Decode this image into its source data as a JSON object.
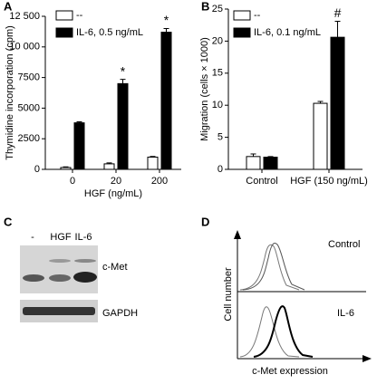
{
  "chart_data": [
    {
      "type": "bar",
      "panel": "A",
      "y_label": "Thymidine incorporation (cpm)",
      "x_label": "HGF (ng/mL)",
      "categories": [
        "0",
        "20",
        "200"
      ],
      "series": [
        {
          "name": "--",
          "color": "#ffffff",
          "values": [
            150,
            450,
            1000
          ],
          "errors": [
            50,
            80,
            50
          ]
        },
        {
          "name": "IL-6, 0.5 ng/mL",
          "color": "#000000",
          "values": [
            3800,
            7000,
            11200
          ],
          "errors": [
            80,
            350,
            300
          ]
        }
      ],
      "annotations": [
        "*",
        "*"
      ],
      "ylim": [
        0,
        12500
      ],
      "yticks": [
        0,
        2500,
        5000,
        7500,
        {
          "value": 10000,
          "label": "10 000"
        },
        {
          "value": 12500,
          "label": "12 500"
        }
      ]
    },
    {
      "type": "bar",
      "panel": "B",
      "y_label": "Migration (cells × 1000)",
      "categories": [
        "Control",
        "HGF (150 ng/mL)"
      ],
      "series": [
        {
          "name": "--",
          "color": "#ffffff",
          "values": [
            2.0,
            10.3
          ],
          "errors": [
            0.4,
            0.3
          ]
        },
        {
          "name": "IL-6, 0.1 ng/mL",
          "color": "#000000",
          "values": [
            1.9,
            20.6
          ],
          "errors": [
            0.1,
            2.5
          ]
        }
      ],
      "annotations": [
        "#"
      ],
      "ylim": [
        0,
        25
      ],
      "yticks": [
        0,
        5,
        10,
        15,
        20,
        25
      ]
    }
  ],
  "blot": {
    "panel": "C",
    "lanes": [
      "-",
      "HGF",
      "IL-6"
    ],
    "bands": [
      "c-Met",
      "GAPDH"
    ]
  },
  "flow": {
    "panel": "D",
    "y_label": "Cell number",
    "x_label": "c-Met expression",
    "conditions": [
      "Control",
      "IL-6"
    ]
  }
}
